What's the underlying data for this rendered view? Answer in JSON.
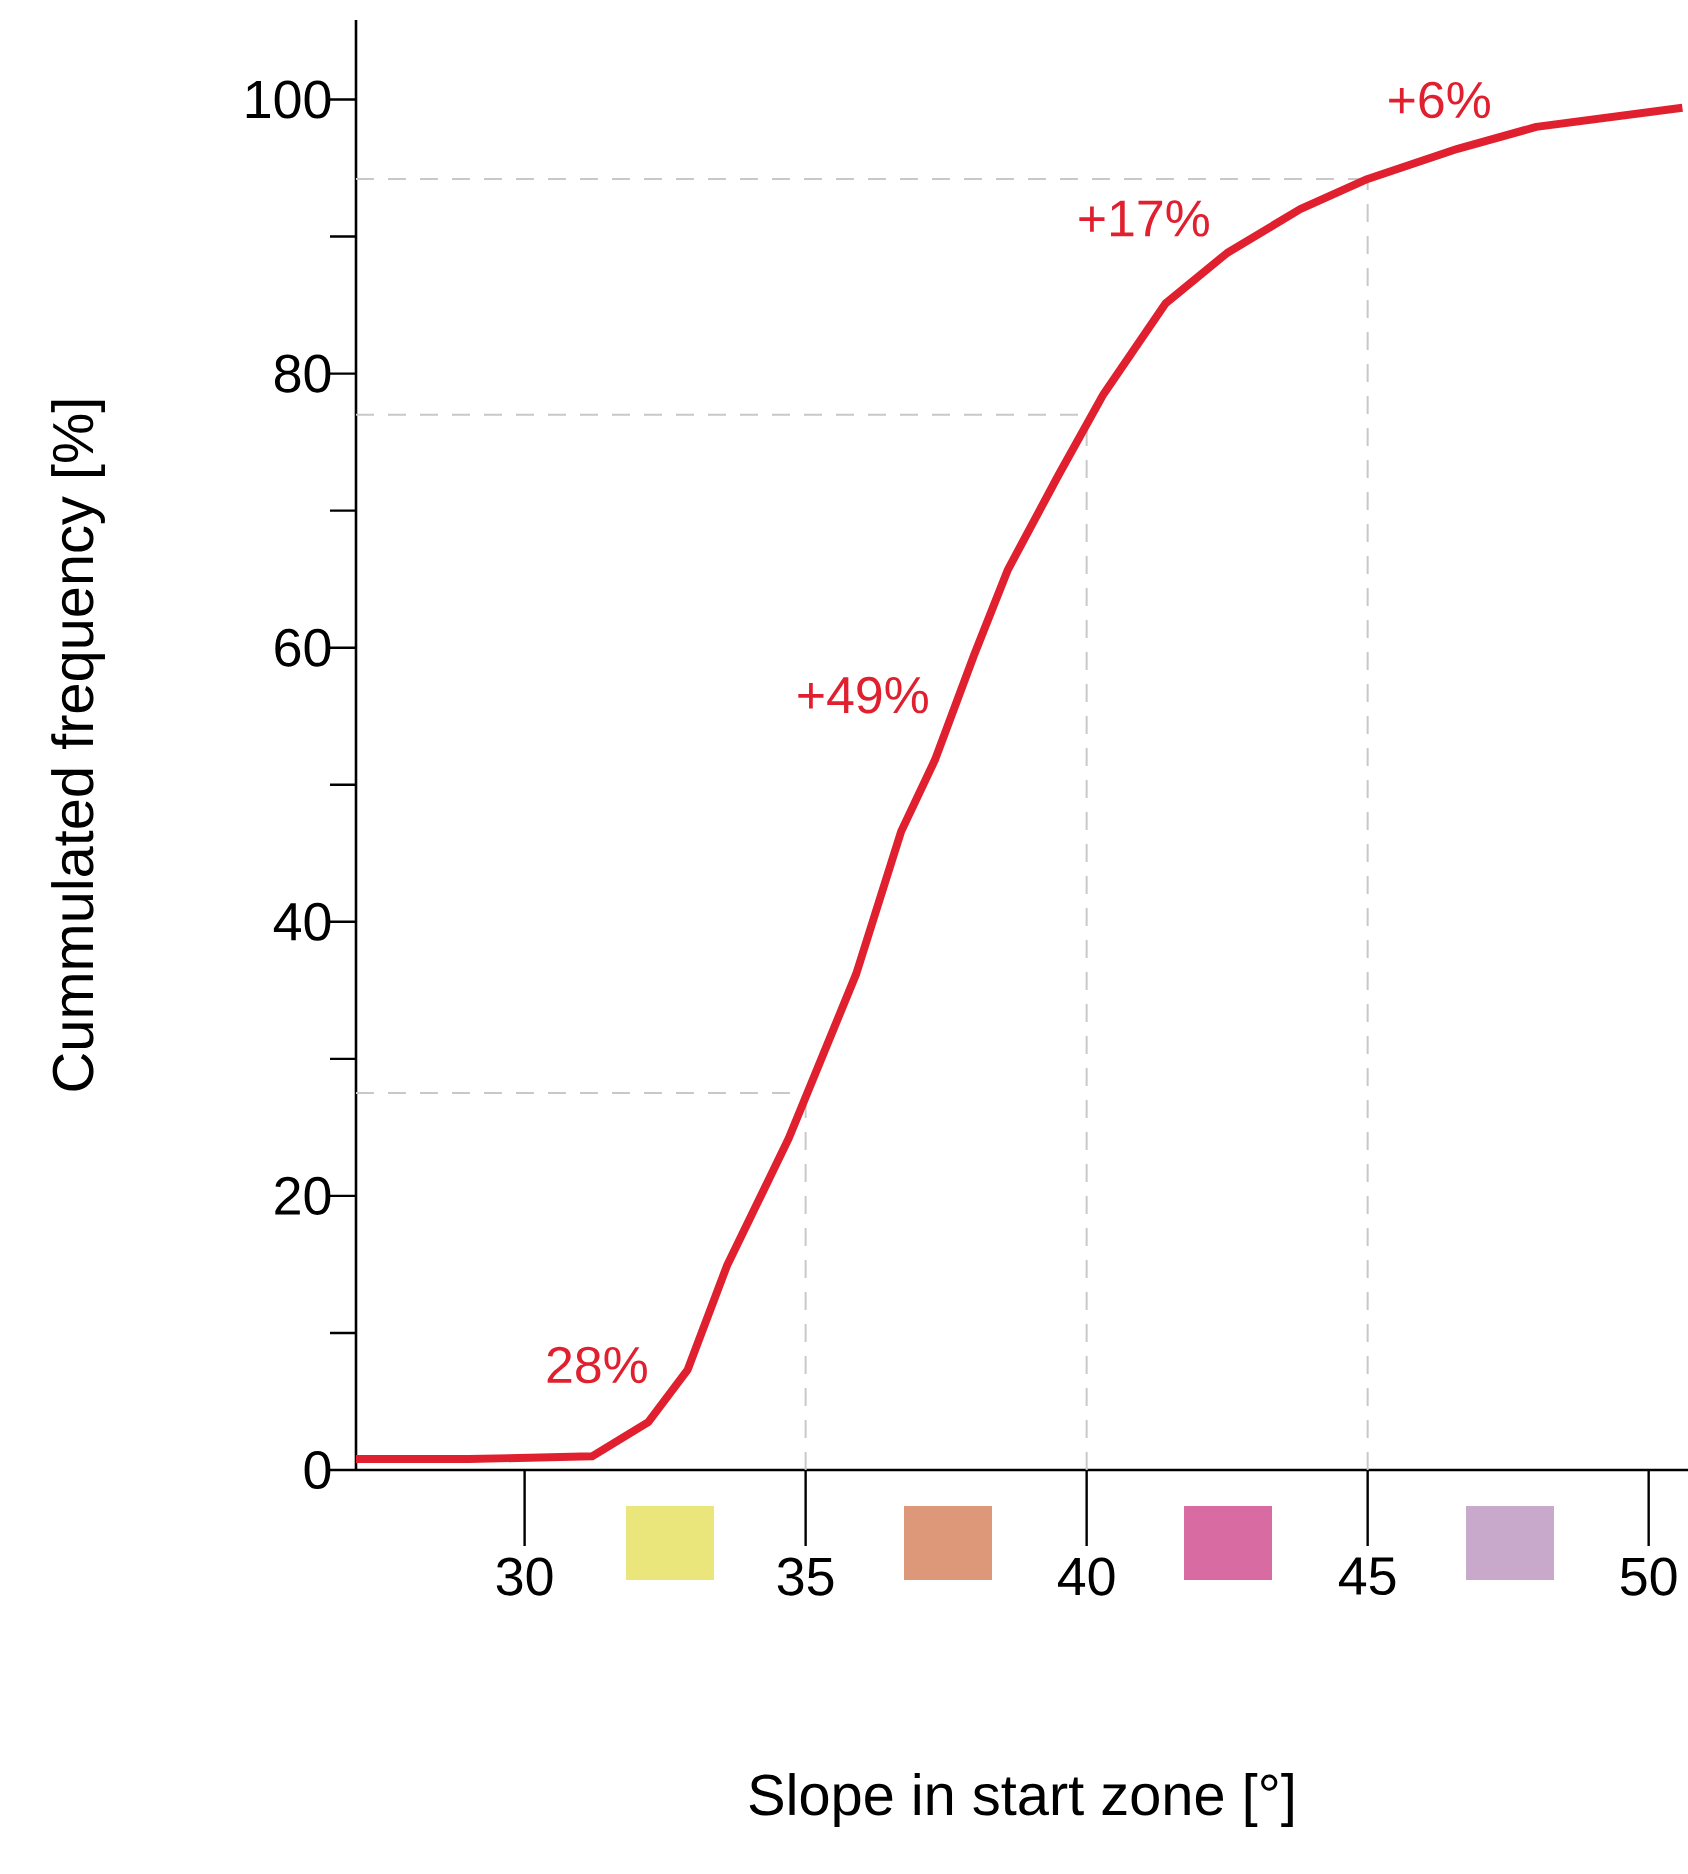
{
  "chart_data": {
    "type": "line",
    "xlabel": "Slope in start zone [°]",
    "ylabel": "Cummulated frequency [%]",
    "xlim": [
      27,
      50.7
    ],
    "ylim": [
      0,
      105.8
    ],
    "xticks": [
      30,
      35,
      40,
      45,
      50
    ],
    "yticks": [
      0,
      {
        "value": 10,
        "label": null
      },
      20,
      {
        "value": 30,
        "label": null
      },
      40,
      {
        "value": 50,
        "label": null
      },
      60,
      {
        "value": 70,
        "label": null
      },
      80,
      {
        "value": 90,
        "label": null
      },
      100
    ],
    "grid": false,
    "marker": "none",
    "line_style": "solid",
    "series": [
      {
        "color": "#e0202e",
        "x": [
          27,
          29,
          31.2,
          32.2,
          32.9,
          33.6,
          34.7,
          35.9,
          36.7,
          37.3,
          38.0,
          38.6,
          39.5,
          40.3,
          41.4,
          42.5,
          43.8,
          45,
          46.6,
          48,
          50.6
        ],
        "values": [
          0.8,
          0.8,
          1.0,
          3.5,
          7.3,
          14.9,
          24.2,
          36.2,
          46.6,
          51.8,
          59.5,
          65.7,
          72.6,
          78.5,
          85.1,
          88.8,
          92.0,
          94.2,
          96.4,
          98.0,
          99.4
        ]
      }
    ],
    "ref_lines": [
      {
        "axis": "y",
        "value": 27.5,
        "color": "#c8c8c8",
        "line_style": "dashed"
      },
      {
        "axis": "y",
        "value": 77,
        "color": "#c8c8c8",
        "line_style": "dashed"
      },
      {
        "axis": "y",
        "value": 94.2,
        "color": "#c8c8c8",
        "line_style": "dashed"
      },
      {
        "axis": "x",
        "value": 35,
        "color": "#c8c8c8",
        "line_style": "dashed"
      },
      {
        "axis": "x",
        "value": 40,
        "color": "#c8c8c8",
        "line_style": "dashed"
      },
      {
        "axis": "x",
        "value": 45,
        "color": "#c8c8c8",
        "line_style": "dashed"
      }
    ],
    "annotations": [
      "28%",
      "+49%",
      "+17%",
      "+6%"
    ]
  }
}
